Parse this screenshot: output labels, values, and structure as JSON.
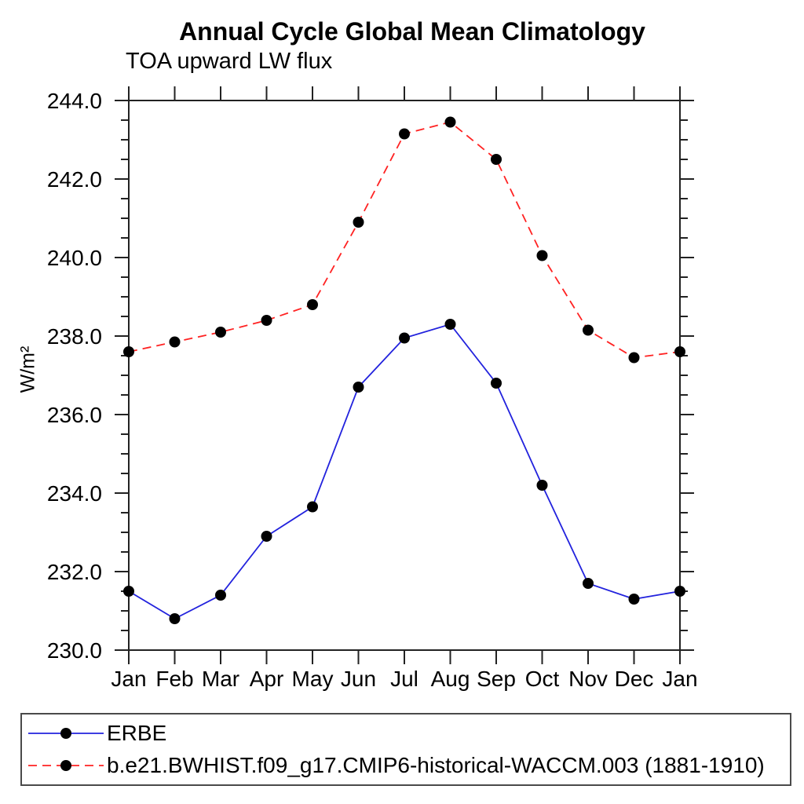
{
  "page": {
    "background": "#ffffff"
  },
  "chart_data": {
    "type": "line",
    "title": "Annual Cycle Global Mean Climatology",
    "subtitle": "TOA upward LW flux",
    "ylabel": "W/m²",
    "xlabel": "",
    "categories": [
      "Jan",
      "Feb",
      "Mar",
      "Apr",
      "May",
      "Jun",
      "Jul",
      "Aug",
      "Sep",
      "Oct",
      "Nov",
      "Dec",
      "Jan"
    ],
    "ylim": [
      230.0,
      244.0
    ],
    "ytick_major_step": 2.0,
    "ytick_minor_step": 0.5,
    "ytick_labels": [
      "230.0",
      "232.0",
      "234.0",
      "236.0",
      "238.0",
      "240.0",
      "242.0",
      "244.0"
    ],
    "grid": false,
    "legend_position": "bottom",
    "axis_color": "#222222",
    "marker_color": "#000000",
    "series": [
      {
        "name": "ERBE",
        "color": "#2222dd",
        "style": "solid",
        "marker": "circle",
        "values": [
          231.5,
          230.8,
          231.4,
          232.9,
          233.65,
          236.7,
          237.95,
          238.3,
          236.8,
          234.2,
          231.7,
          231.3,
          231.5
        ]
      },
      {
        "name": "b.e21.BWHIST.f09_g17.CMIP6-historical-WACCM.003 (1881-1910)",
        "color": "#ff2222",
        "style": "dashed",
        "marker": "circle",
        "values": [
          237.6,
          237.85,
          238.1,
          238.4,
          238.8,
          240.9,
          243.15,
          243.45,
          242.5,
          240.05,
          238.15,
          237.45,
          237.6
        ]
      }
    ]
  }
}
